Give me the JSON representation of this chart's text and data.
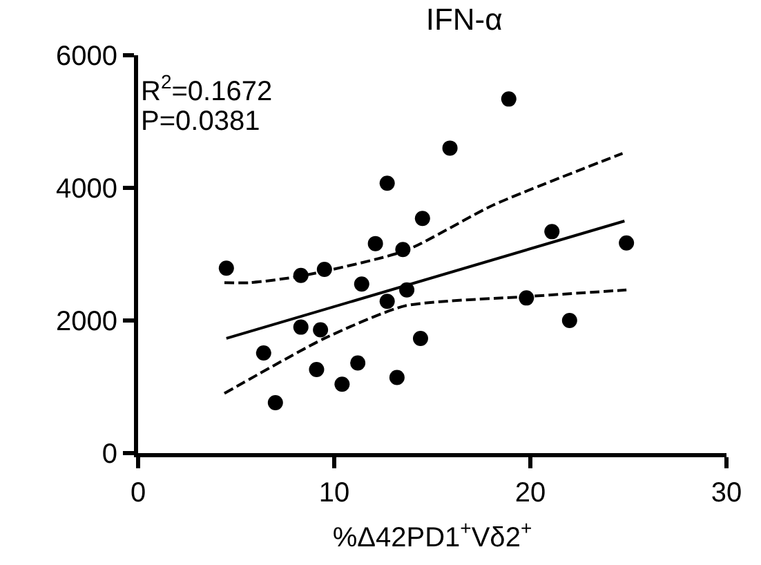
{
  "chart_data": {
    "type": "scatter",
    "title": "IFN-α",
    "xlabel": "%Δ42PD1$^{+}$Vδ2$^{+}$",
    "annotations": [
      "R$^{2}$=0.1672",
      "P=0.0381"
    ],
    "xlim": [
      0,
      30
    ],
    "xticks": [
      0,
      10,
      20,
      30
    ],
    "ylim": [
      0,
      6000
    ],
    "yticks": [
      0,
      2000,
      4000,
      6000
    ],
    "grid": false,
    "legend": false,
    "marker": "circle",
    "series": [
      {
        "color": "#000000",
        "x": [
          4.5,
          18.9,
          15.9,
          12.7,
          14.5,
          12.1,
          13.5,
          21.1,
          24.9,
          8.3,
          9.5,
          11.4,
          13.7,
          12.7,
          19.8,
          22.0,
          8.3,
          9.3,
          14.4,
          6.4,
          9.1,
          11.2,
          10.4,
          13.2,
          7.0
        ],
        "values": [
          2790,
          5340,
          4600,
          4070,
          3540,
          3160,
          3070,
          3340,
          3170,
          2680,
          2770,
          2550,
          2460,
          2290,
          2340,
          2000,
          1900,
          1860,
          1730,
          1510,
          1260,
          1360,
          1040,
          1140,
          760
        ]
      },
      {
        "type": "line",
        "color": "#000000",
        "line_style": "solid",
        "marker": "none",
        "x": [
          4.5,
          24.8
        ],
        "values": [
          1730,
          3500
        ]
      },
      {
        "type": "line",
        "color": "#000000",
        "line_style": "dashed",
        "marker": "none",
        "x": [
          4.4,
          5.7,
          8.3,
          13.6,
          18.1,
          24.7
        ],
        "values": [
          2570,
          2570,
          2670,
          3050,
          3740,
          4520
        ]
      },
      {
        "type": "line",
        "color": "#000000",
        "line_style": "dashed",
        "marker": "none",
        "x": [
          4.4,
          9.5,
          13.6,
          19.8,
          24.9
        ],
        "values": [
          900,
          1730,
          2220,
          2360,
          2460
        ]
      }
    ]
  }
}
